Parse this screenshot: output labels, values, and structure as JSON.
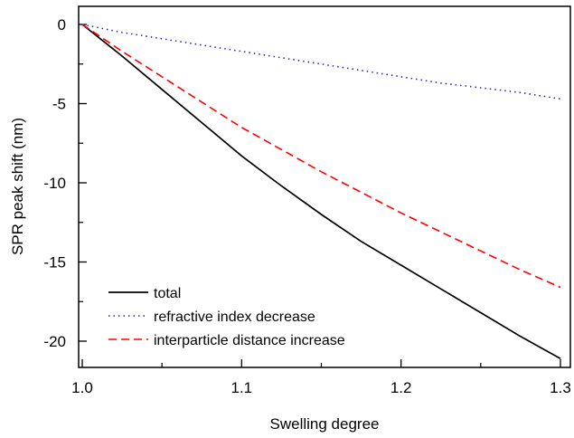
{
  "chart_data": {
    "type": "line",
    "xlabel": "Swelling degree",
    "ylabel": "SPR peak shift (nm)",
    "xlim": [
      1.0,
      1.3
    ],
    "ylim": [
      -22,
      1.5
    ],
    "x_ticks": [
      1.0,
      1.1,
      1.2,
      1.3
    ],
    "x_tick_labels": [
      "1.0",
      "1.1",
      "1.2",
      "1.3"
    ],
    "y_ticks": [
      0,
      -5,
      -10,
      -15,
      -20
    ],
    "y_tick_labels": [
      "0",
      "-5",
      "-10",
      "-15",
      "-20"
    ],
    "grid": false,
    "legend_position": "bottom-left",
    "x": [
      1.0,
      1.025,
      1.05,
      1.075,
      1.1,
      1.125,
      1.15,
      1.175,
      1.2,
      1.225,
      1.25,
      1.275,
      1.3
    ],
    "series": [
      {
        "name": "total",
        "color": "#000000",
        "style": "solid",
        "values": [
          0,
          -2.0,
          -4.1,
          -6.2,
          -8.3,
          -10.2,
          -12.0,
          -13.7,
          -15.2,
          -16.7,
          -18.2,
          -19.7,
          -21.1
        ]
      },
      {
        "name": "refractive index decrease",
        "color": "#2b2bb8",
        "style": "dotted",
        "values": [
          0,
          -0.5,
          -0.9,
          -1.3,
          -1.7,
          -2.1,
          -2.5,
          -2.9,
          -3.3,
          -3.7,
          -4.0,
          -4.3,
          -4.7
        ]
      },
      {
        "name": "interparticle distance increase",
        "color": "#ff0000",
        "style": "dashed",
        "values": [
          0,
          -1.7,
          -3.3,
          -4.9,
          -6.5,
          -7.9,
          -9.3,
          -10.6,
          -11.9,
          -13.1,
          -14.3,
          -15.5,
          -16.6
        ]
      }
    ]
  }
}
